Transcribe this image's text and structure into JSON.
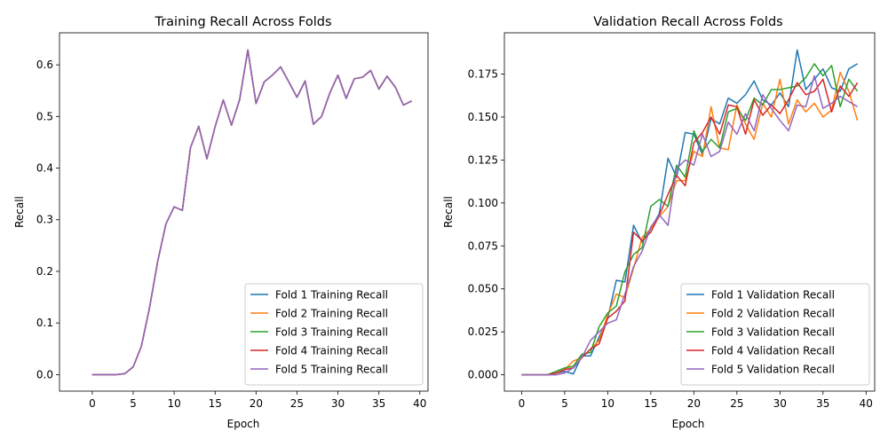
{
  "colors": [
    "#1f77b4",
    "#ff7f0e",
    "#2ca02c",
    "#d62728",
    "#9467bd"
  ],
  "chart_data": [
    {
      "type": "line",
      "title": "Training Recall Across Folds",
      "xlabel": "Epoch",
      "ylabel": "Recall",
      "xlim": [
        -4,
        41
      ],
      "ylim": [
        -0.032,
        0.662
      ],
      "xticks": [
        0,
        5,
        10,
        15,
        20,
        25,
        30,
        35,
        40
      ],
      "yticks": [
        0.0,
        0.1,
        0.2,
        0.3,
        0.4,
        0.5,
        0.6
      ],
      "ytick_labels": [
        "0.0",
        "0.1",
        "0.2",
        "0.3",
        "0.4",
        "0.5",
        "0.6"
      ],
      "legend_position": "lower right",
      "grid": false,
      "x": [
        0,
        1,
        2,
        3,
        4,
        5,
        6,
        7,
        8,
        9,
        10,
        11,
        12,
        13,
        14,
        15,
        16,
        17,
        18,
        19,
        20,
        21,
        22,
        23,
        24,
        25,
        26,
        27,
        28,
        29,
        30,
        31,
        32,
        33,
        34,
        35,
        36,
        37,
        38,
        39
      ],
      "series": [
        {
          "name": "Fold 1 Training Recall",
          "values": [
            0,
            0,
            0,
            0,
            0.002,
            0.015,
            0.055,
            0.13,
            0.22,
            0.292,
            0.325,
            0.318,
            0.44,
            0.481,
            0.418,
            0.48,
            0.532,
            0.483,
            0.533,
            0.629,
            0.525,
            0.567,
            0.58,
            0.596,
            0.567,
            0.537,
            0.569,
            0.485,
            0.5,
            0.545,
            0.58,
            0.535,
            0.573,
            0.576,
            0.589,
            0.553,
            0.578,
            0.557,
            0.522,
            0.53
          ]
        },
        {
          "name": "Fold 2 Training Recall",
          "values": [
            0,
            0,
            0,
            0,
            0.002,
            0.015,
            0.055,
            0.13,
            0.22,
            0.292,
            0.325,
            0.318,
            0.44,
            0.481,
            0.418,
            0.48,
            0.532,
            0.483,
            0.533,
            0.629,
            0.525,
            0.567,
            0.58,
            0.596,
            0.567,
            0.537,
            0.569,
            0.485,
            0.5,
            0.545,
            0.58,
            0.535,
            0.573,
            0.576,
            0.589,
            0.553,
            0.578,
            0.557,
            0.522,
            0.53
          ]
        },
        {
          "name": "Fold 3 Training Recall",
          "values": [
            0,
            0,
            0,
            0,
            0.002,
            0.015,
            0.055,
            0.13,
            0.22,
            0.292,
            0.325,
            0.318,
            0.44,
            0.481,
            0.418,
            0.48,
            0.532,
            0.483,
            0.533,
            0.629,
            0.525,
            0.567,
            0.58,
            0.596,
            0.567,
            0.537,
            0.569,
            0.485,
            0.5,
            0.545,
            0.58,
            0.535,
            0.573,
            0.576,
            0.589,
            0.553,
            0.578,
            0.557,
            0.522,
            0.53
          ]
        },
        {
          "name": "Fold 4 Training Recall",
          "values": [
            0,
            0,
            0,
            0,
            0.002,
            0.015,
            0.055,
            0.13,
            0.22,
            0.292,
            0.325,
            0.318,
            0.44,
            0.481,
            0.418,
            0.48,
            0.532,
            0.483,
            0.533,
            0.629,
            0.525,
            0.567,
            0.58,
            0.596,
            0.567,
            0.537,
            0.569,
            0.485,
            0.5,
            0.545,
            0.58,
            0.535,
            0.573,
            0.576,
            0.589,
            0.553,
            0.578,
            0.557,
            0.522,
            0.53
          ]
        },
        {
          "name": "Fold 5 Training Recall",
          "values": [
            0,
            0,
            0,
            0,
            0.002,
            0.015,
            0.055,
            0.13,
            0.22,
            0.292,
            0.325,
            0.318,
            0.44,
            0.481,
            0.418,
            0.48,
            0.532,
            0.483,
            0.533,
            0.629,
            0.525,
            0.567,
            0.58,
            0.596,
            0.567,
            0.537,
            0.569,
            0.485,
            0.5,
            0.545,
            0.58,
            0.535,
            0.573,
            0.576,
            0.589,
            0.553,
            0.578,
            0.557,
            0.522,
            0.53
          ]
        }
      ]
    },
    {
      "type": "line",
      "title": "Validation Recall Across Folds",
      "xlabel": "Epoch",
      "ylabel": "Recall",
      "xlim": [
        -2,
        41
      ],
      "ylim": [
        -0.0095,
        0.199
      ],
      "xticks": [
        0,
        5,
        10,
        15,
        20,
        25,
        30,
        35,
        40
      ],
      "yticks": [
        0.0,
        0.025,
        0.05,
        0.075,
        0.1,
        0.125,
        0.15,
        0.175
      ],
      "ytick_labels": [
        "0.000",
        "0.025",
        "0.050",
        "0.075",
        "0.100",
        "0.125",
        "0.150",
        "0.175"
      ],
      "legend_position": "lower right",
      "grid": false,
      "x": [
        0,
        1,
        2,
        3,
        4,
        5,
        6,
        7,
        8,
        9,
        10,
        11,
        12,
        13,
        14,
        15,
        16,
        17,
        18,
        19,
        20,
        21,
        22,
        23,
        24,
        25,
        26,
        27,
        28,
        29,
        30,
        31,
        32,
        33,
        34,
        35,
        36,
        37,
        38,
        39
      ],
      "series": [
        {
          "name": "Fold 1 Validation Recall",
          "values": [
            0,
            0,
            0,
            0,
            0.001,
            0.002,
            0.0005,
            0.011,
            0.011,
            0.022,
            0.033,
            0.055,
            0.054,
            0.087,
            0.077,
            0.085,
            0.094,
            0.126,
            0.115,
            0.141,
            0.14,
            0.128,
            0.149,
            0.146,
            0.161,
            0.158,
            0.163,
            0.171,
            0.16,
            0.157,
            0.164,
            0.156,
            0.189,
            0.166,
            0.172,
            0.178,
            0.167,
            0.165,
            0.178,
            0.181
          ]
        },
        {
          "name": "Fold 2 Validation Recall",
          "values": [
            0,
            0,
            0,
            0,
            0.001,
            0.003,
            0.008,
            0.01,
            0.015,
            0.02,
            0.035,
            0.047,
            0.045,
            0.062,
            0.08,
            0.085,
            0.092,
            0.098,
            0.113,
            0.113,
            0.13,
            0.127,
            0.156,
            0.132,
            0.131,
            0.157,
            0.146,
            0.137,
            0.158,
            0.15,
            0.172,
            0.146,
            0.16,
            0.153,
            0.158,
            0.15,
            0.154,
            0.176,
            0.165,
            0.148
          ]
        },
        {
          "name": "Fold 3 Validation Recall",
          "values": [
            0,
            0,
            0,
            0,
            0.002,
            0.004,
            0.005,
            0.012,
            0.013,
            0.028,
            0.036,
            0.04,
            0.06,
            0.07,
            0.074,
            0.098,
            0.102,
            0.098,
            0.122,
            0.115,
            0.142,
            0.13,
            0.137,
            0.132,
            0.153,
            0.155,
            0.148,
            0.161,
            0.157,
            0.166,
            0.166,
            0.167,
            0.168,
            0.173,
            0.181,
            0.174,
            0.18,
            0.156,
            0.172,
            0.165
          ]
        },
        {
          "name": "Fold 4 Validation Recall",
          "values": [
            0,
            0,
            0,
            0,
            0.001,
            0.003,
            0.004,
            0.01,
            0.015,
            0.018,
            0.033,
            0.037,
            0.043,
            0.083,
            0.078,
            0.083,
            0.093,
            0.105,
            0.116,
            0.11,
            0.135,
            0.141,
            0.15,
            0.14,
            0.157,
            0.156,
            0.14,
            0.16,
            0.151,
            0.157,
            0.152,
            0.16,
            0.17,
            0.163,
            0.165,
            0.172,
            0.153,
            0.168,
            0.162,
            0.17
          ]
        },
        {
          "name": "Fold 5 Validation Recall",
          "values": [
            0,
            0,
            0,
            0,
            0,
            0.001,
            0.004,
            0.01,
            0.02,
            0.025,
            0.03,
            0.032,
            0.047,
            0.063,
            0.072,
            0.086,
            0.093,
            0.087,
            0.12,
            0.125,
            0.122,
            0.14,
            0.127,
            0.13,
            0.147,
            0.14,
            0.152,
            0.142,
            0.163,
            0.155,
            0.148,
            0.142,
            0.157,
            0.156,
            0.174,
            0.155,
            0.158,
            0.162,
            0.159,
            0.156
          ]
        }
      ]
    }
  ]
}
